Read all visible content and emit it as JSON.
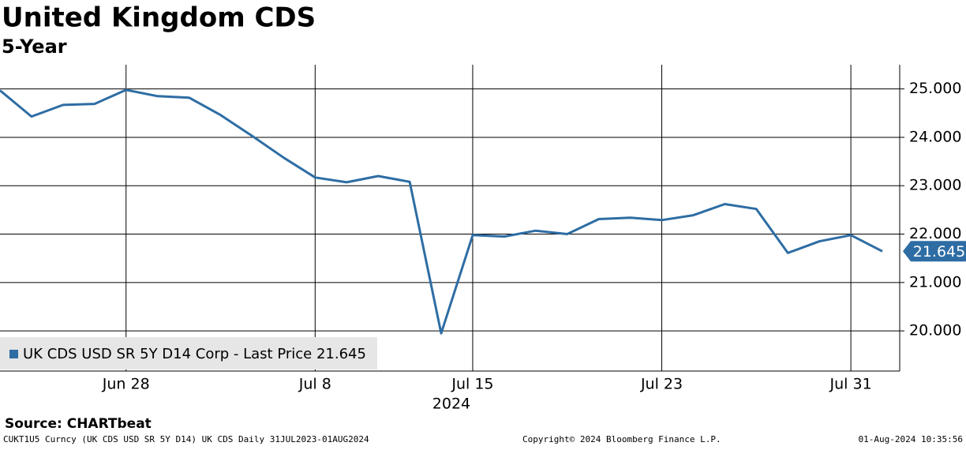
{
  "chart_data": {
    "type": "line",
    "title": "United Kingdom CDS",
    "subtitle": "5-Year",
    "categories": [
      null,
      null,
      null,
      null,
      "Jun 28",
      null,
      null,
      null,
      null,
      null,
      "Jul 8",
      null,
      null,
      null,
      null,
      "Jul 15",
      null,
      null,
      null,
      null,
      null,
      "Jul 23",
      null,
      null,
      null,
      null,
      null,
      "Jul 31",
      null
    ],
    "x_axis_year": "2024",
    "series": [
      {
        "name": "UK CDS USD SR 5Y D14 Corp - Last Price 21.645",
        "color": "#2e6da4",
        "values": [
          24.97,
          24.43,
          24.67,
          24.69,
          24.98,
          24.85,
          24.82,
          24.46,
          24.03,
          23.58,
          23.17,
          23.07,
          23.2,
          23.08,
          19.95,
          21.98,
          21.95,
          22.07,
          22.0,
          22.31,
          22.34,
          22.29,
          22.39,
          22.62,
          22.52,
          21.61,
          21.85,
          21.98,
          21.645
        ],
        "last_value_label": "21.645"
      }
    ],
    "ylim": [
      19.17,
      25.5
    ],
    "yticks": [
      {
        "value": 20,
        "label": "20.000"
      },
      {
        "value": 21,
        "label": "21.000"
      },
      {
        "value": 22,
        "label": "22.000"
      },
      {
        "value": 23,
        "label": "23.000"
      },
      {
        "value": 24,
        "label": "24.000"
      },
      {
        "value": 25,
        "label": "25.000"
      }
    ],
    "grid": true,
    "legend": "lower-left",
    "source": "Source: CHARTbeat",
    "footer_left": "CUKT1U5 Curncy (UK CDS USD SR 5Y D14) UK CDS  Daily 31JUL2023-01AUG2024",
    "footer_center": "Copyright© 2024 Bloomberg Finance L.P.",
    "footer_right": "01-Aug-2024 10:35:56"
  }
}
